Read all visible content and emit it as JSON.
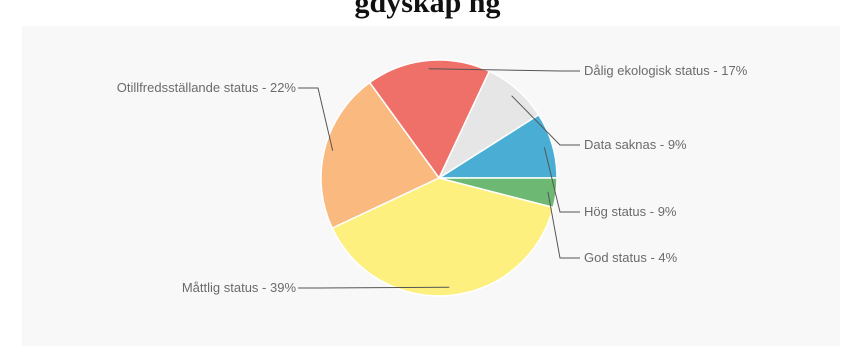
{
  "title": "...gdyskap...ftet status for ... tig...",
  "title_visible": "gdyskap                                                                                          ng",
  "chart_data": {
    "type": "pie",
    "start_angle_deg": 90,
    "direction": "counterclockwise",
    "slices": [
      {
        "label": "Hög status - 9%",
        "value": 9,
        "color": "#4aaed4"
      },
      {
        "label": "Data saknas - 9%",
        "value": 9,
        "color": "#e6e6e6"
      },
      {
        "label": "Dålig ekologisk status - 17%",
        "value": 17,
        "color": "#ef6f69"
      },
      {
        "label": "Otillfredsställande status  - 22%",
        "value": 22,
        "color": "#f9b97f"
      },
      {
        "label": "Måttlig status  - 39%",
        "value": 39,
        "color": "#fdf07e"
      },
      {
        "label": "God status - 4%",
        "value": 4,
        "color": "#6db873"
      }
    ]
  }
}
